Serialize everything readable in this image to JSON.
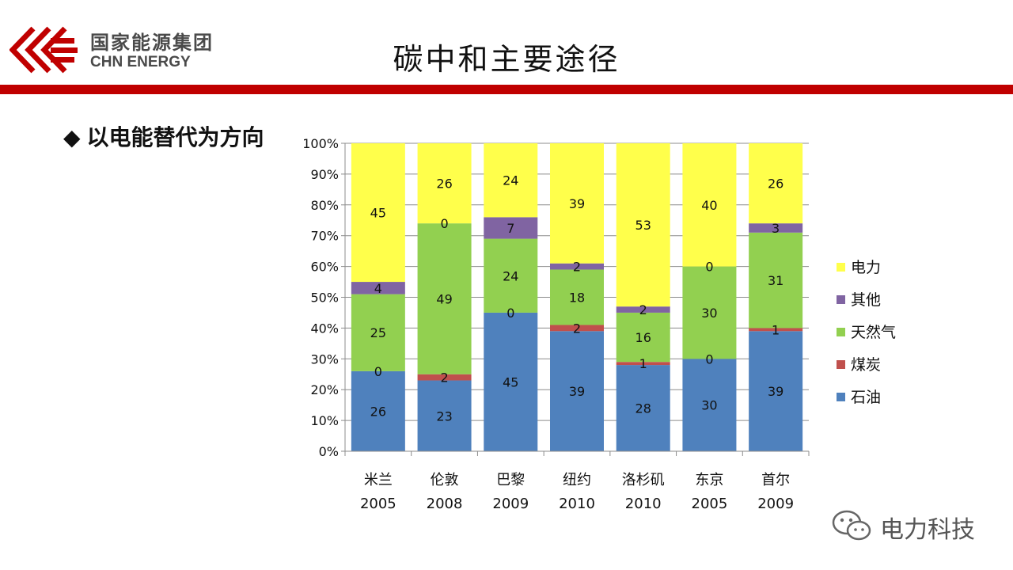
{
  "header": {
    "logo": {
      "name_cn": "国家能源集团",
      "name_en": "CHN ENERGY",
      "brand_color": "#c00000"
    },
    "title": "碳中和主要途径"
  },
  "bullet": {
    "icon": "diamond-bullet-icon",
    "text": "以电能替代为方向"
  },
  "watermark": {
    "icon": "wechat-icon",
    "text": "电力科技"
  },
  "chart_data": {
    "type": "bar",
    "stacked": true,
    "percent_stacked": true,
    "categories": [
      [
        "米兰",
        "2005"
      ],
      [
        "伦敦",
        "2008"
      ],
      [
        "巴黎",
        "2009"
      ],
      [
        "纽约",
        "2010"
      ],
      [
        "洛杉矶",
        "2010"
      ],
      [
        "东京",
        "2005"
      ],
      [
        "首尔",
        "2009"
      ]
    ],
    "series": [
      {
        "name": "石油",
        "color": "#4f81bd",
        "values": [
          26,
          23,
          45,
          39,
          28,
          30,
          39
        ]
      },
      {
        "name": "煤炭",
        "color": "#c0504d",
        "values": [
          0,
          2,
          0,
          2,
          1,
          0,
          1
        ]
      },
      {
        "name": "天然气",
        "color": "#92d050",
        "values": [
          25,
          49,
          24,
          18,
          16,
          30,
          31
        ]
      },
      {
        "name": "其他",
        "color": "#8064a2",
        "values": [
          4,
          0,
          7,
          2,
          2,
          0,
          3
        ]
      },
      {
        "name": "电力",
        "color": "#ffff4b",
        "values": [
          45,
          26,
          24,
          39,
          53,
          40,
          26
        ]
      }
    ],
    "y_ticks": [
      "0%",
      "10%",
      "20%",
      "30%",
      "40%",
      "50%",
      "60%",
      "70%",
      "80%",
      "90%",
      "100%"
    ],
    "ylim": [
      0,
      100
    ],
    "grid": true,
    "legend_position": "right",
    "legend_order": [
      "电力",
      "其他",
      "天然气",
      "煤炭",
      "石油"
    ],
    "title": "",
    "xlabel": "",
    "ylabel": ""
  }
}
